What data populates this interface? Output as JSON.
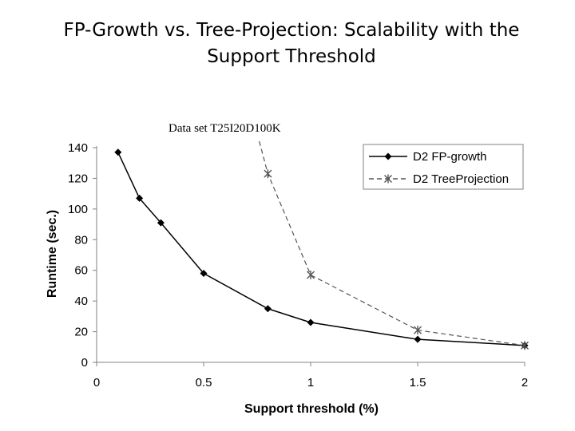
{
  "slide": {
    "title": "FP-Growth vs. Tree-Projection: Scalability with the Support Threshold"
  },
  "chart_data": {
    "type": "line",
    "title": "Data set T25I20D100K",
    "xlabel": "Support threshold (%)",
    "ylabel": "Runtime (sec.)",
    "xlim": [
      0,
      2
    ],
    "ylim": [
      0,
      140
    ],
    "xticks": [
      0,
      0.5,
      1,
      1.5,
      2
    ],
    "xtick_labels": [
      "0",
      "0.5",
      "1",
      "1.5",
      "2"
    ],
    "yticks": [
      0,
      20,
      40,
      60,
      80,
      100,
      120,
      140
    ],
    "ytick_labels": [
      "0",
      "20",
      "40",
      "60",
      "80",
      "100",
      "120",
      "140"
    ],
    "grid": false,
    "legend_position": "top-right",
    "series": [
      {
        "name": "D2 FP-growth",
        "style": "solid",
        "marker": "diamond",
        "color": "#000000",
        "x": [
          0.1,
          0.2,
          0.3,
          0.5,
          0.8,
          1.0,
          1.5,
          2.0
        ],
        "y": [
          137,
          107,
          91,
          58,
          35,
          26,
          15,
          11
        ]
      },
      {
        "name": "D2 TreeProjection",
        "style": "dashed",
        "marker": "asterisk",
        "color": "#555555",
        "x": [
          0.8,
          1.0,
          1.5,
          2.0
        ],
        "y": [
          123,
          57,
          21,
          11
        ],
        "extends_above_axis_from_x": 0.76
      }
    ]
  }
}
